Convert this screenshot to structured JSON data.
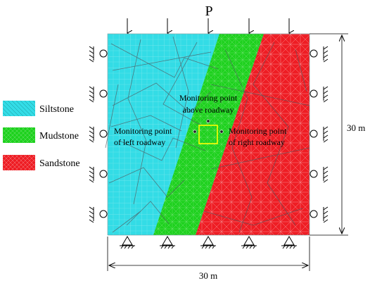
{
  "load_label": "P",
  "legend": {
    "items": [
      {
        "label": "Siltstone",
        "color": "#33dce6"
      },
      {
        "label": "Mudstone",
        "color": "#1ed11e"
      },
      {
        "label": "Sandstone",
        "color": "#ee1d24"
      }
    ]
  },
  "annotations": {
    "above_line1": "Monitoring point",
    "above_line2": "above roadway",
    "left_line1": "Monitoring point",
    "left_line2": "of  left roadway",
    "right_line1": "Monitoring point",
    "right_line2": "of  right roadway"
  },
  "dimensions": {
    "height": "30 m",
    "width": "30 m"
  },
  "colors": {
    "siltstone": "#33dce6",
    "mudstone": "#1ed11e",
    "sandstone": "#ee1d24",
    "roadway": "#ffff00",
    "mesh_light": "#ffffff",
    "joints": "#555555"
  }
}
